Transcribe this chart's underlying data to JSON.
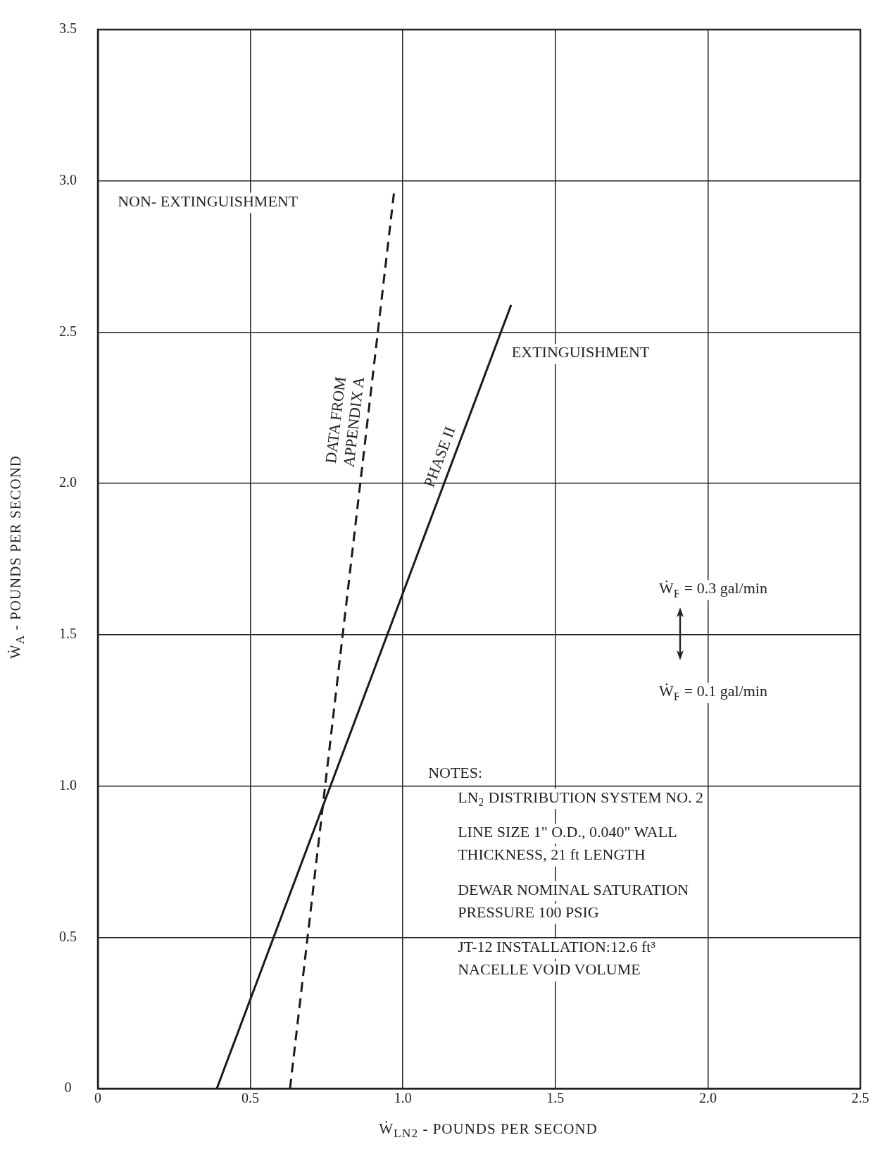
{
  "chart_data": {
    "type": "line",
    "xlabel": "Ẇ$_{LN2}$ - POUNDS PER SECOND",
    "ylabel": "Ẇ$_{A}$ - POUNDS PER SECOND",
    "series": [
      {
        "name": "PHASE II",
        "color": "#1a1a1a",
        "x": [
          0.39,
          1.355
        ],
        "values": [
          0,
          2.59
        ],
        "line_style": "solid"
      },
      {
        "name": "DATA FROM APPENDIX A",
        "color": "#1a1a1a",
        "x": [
          0.63,
          0.972
        ],
        "values": [
          0,
          2.97
        ],
        "line_style": "dashed"
      }
    ],
    "xlim": [
      0,
      2.5
    ],
    "xticks": [
      0,
      0.5,
      {
        "value": 1,
        "label": "1.0"
      },
      {
        "value": 1.5,
        "label": "1.5"
      },
      {
        "value": 2,
        "label": "2.0"
      },
      2.5
    ],
    "ylim": [
      0,
      3.5
    ],
    "yticks": [
      0,
      0.5,
      {
        "value": 1,
        "label": "1.0"
      },
      {
        "value": 1.5,
        "label": "1.5"
      },
      {
        "value": 2,
        "label": "2.0"
      },
      2.5,
      {
        "value": 3,
        "label": "3.0"
      },
      3.5
    ],
    "annotations": [
      "NON- EXTINGUISHMENT",
      "EXTINGUISHMENT",
      "Ẇ$_{F}$ = 0.3 gal/min",
      "Ẇ$_{F}$ = 0.1 gal/min",
      "NOTES:",
      "LN$_{2}$ DISTRIBUTION SYSTEM NO. 2",
      "LINE SIZE 1\" O.D., 0.040\" WALL",
      "THICKNESS, 21 ft LENGTH",
      "DEWAR NOMINAL SATURATION",
      "PRESSURE 100 PSIG",
      "JT-12 INSTALLATION:12.6 ft³",
      "NACELLE VOID VOLUME"
    ],
    "grid": true,
    "legend": false,
    "marker": "none"
  }
}
